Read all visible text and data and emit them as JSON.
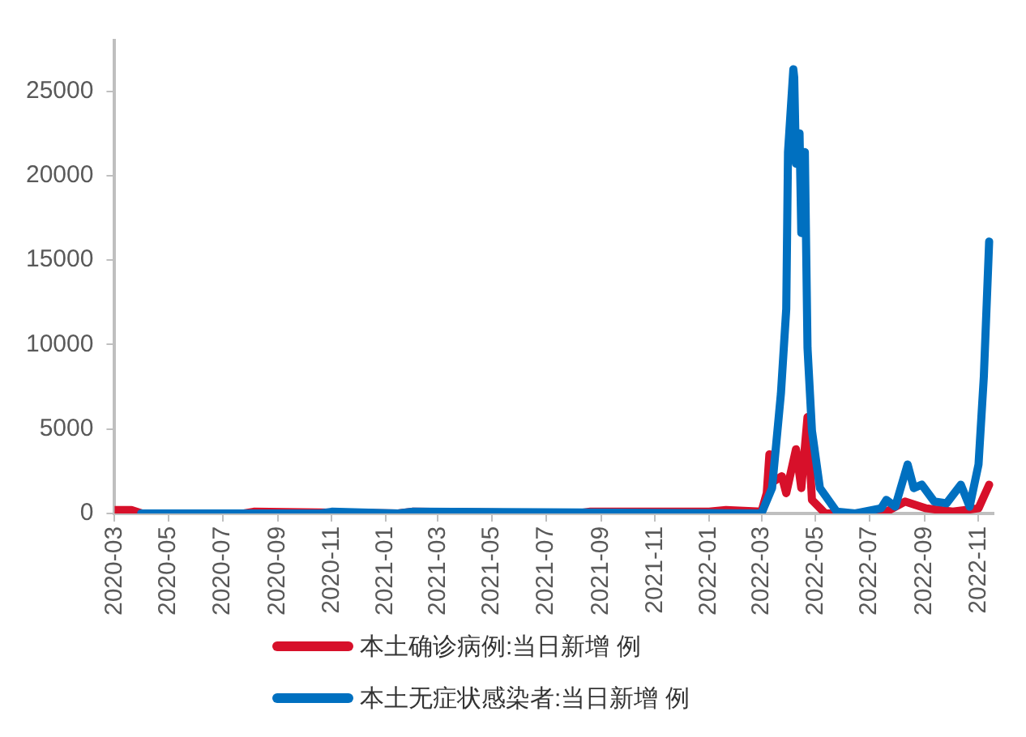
{
  "chart_data": {
    "type": "line",
    "legend": "bottom",
    "grid": false,
    "marker": "none",
    "line_style": "solid",
    "xlim": [
      "2020-03-01",
      "2022-11-18"
    ],
    "xticks": [
      "2020-03",
      "2020-05",
      "2020-07",
      "2020-09",
      "2020-11",
      "2021-01",
      "2021-03",
      "2021-05",
      "2021-07",
      "2021-09",
      "2021-11",
      "2022-01",
      "2022-03",
      "2022-05",
      "2022-07",
      "2022-09",
      "2022-11"
    ],
    "ylim": [
      0,
      28000
    ],
    "yticks": [
      0,
      5000,
      10000,
      15000,
      20000,
      25000
    ],
    "series": [
      {
        "name": "本土确诊病例:当日新增 例",
        "color": "#d7102a",
        "x": [
          "2020-03-01",
          "2020-03-20",
          "2020-04-01",
          "2020-07-25",
          "2020-08-05",
          "2021-01-15",
          "2021-02-01",
          "2021-08-05",
          "2021-08-20",
          "2022-01-01",
          "2022-01-20",
          "2022-03-01",
          "2022-03-07",
          "2022-03-10",
          "2022-03-15",
          "2022-03-24",
          "2022-03-29",
          "2022-04-09",
          "2022-04-15",
          "2022-04-22",
          "2022-04-27",
          "2022-05-12",
          "2022-06-15",
          "2022-07-20",
          "2022-08-10",
          "2022-09-03",
          "2022-10-03",
          "2022-11-01",
          "2022-11-13"
        ],
        "values": [
          200,
          200,
          0,
          0,
          100,
          0,
          100,
          0,
          100,
          100,
          200,
          100,
          1200,
          3500,
          1900,
          2200,
          1200,
          3800,
          1500,
          5700,
          800,
          0,
          0,
          100,
          700,
          300,
          100,
          300,
          1700
        ]
      },
      {
        "name": "本土无症状感染者:当日新增 例",
        "color": "#0070c0",
        "x": [
          "2020-03-31",
          "2020-10-20",
          "2020-11-01",
          "2021-01-15",
          "2021-02-01",
          "2022-03-01",
          "2022-03-13",
          "2022-03-23",
          "2022-03-29",
          "2022-03-31",
          "2022-04-06",
          "2022-04-07",
          "2022-04-09",
          "2022-04-13",
          "2022-04-15",
          "2022-04-19",
          "2022-04-22",
          "2022-04-27",
          "2022-05-06",
          "2022-05-25",
          "2022-06-15",
          "2022-07-14",
          "2022-07-20",
          "2022-07-30",
          "2022-08-13",
          "2022-08-20",
          "2022-08-29",
          "2022-09-12",
          "2022-09-26",
          "2022-10-12",
          "2022-10-22",
          "2022-11-01",
          "2022-11-07",
          "2022-11-13"
        ],
        "values": [
          0,
          0,
          100,
          0,
          100,
          0,
          1500,
          7100,
          12100,
          21400,
          26300,
          25800,
          20700,
          22500,
          16600,
          21400,
          9800,
          4900,
          1500,
          100,
          0,
          300,
          800,
          400,
          2900,
          1500,
          1700,
          700,
          600,
          1700,
          400,
          2900,
          8100,
          16100
        ]
      }
    ]
  }
}
